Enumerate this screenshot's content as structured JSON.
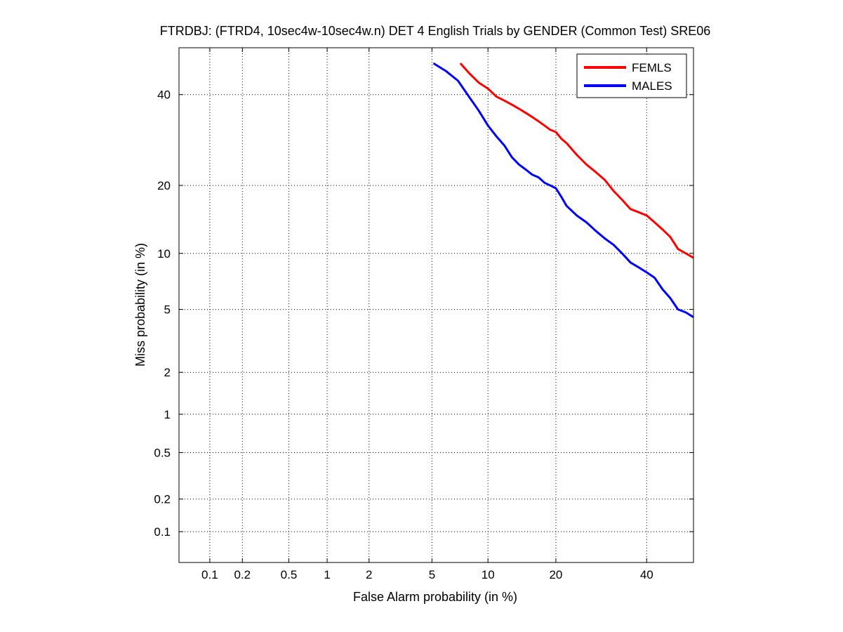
{
  "chart_data": {
    "type": "line",
    "title": "FTRDBJ: (FTRD4, 10sec4w-10sec4w.n) DET 4 English Trials by GENDER (Common Test) SRE06",
    "xlabel": "False Alarm probability (in %)",
    "ylabel": "Miss probability (in %)",
    "scale": "normal-deviate (probit) on both axes",
    "xlim": [
      0.05,
      52
    ],
    "ylim": [
      0.05,
      52
    ],
    "x_ticks": [
      "0.1",
      "0.2",
      "0.5",
      "1",
      "2",
      "5",
      "10",
      "20",
      "40"
    ],
    "y_ticks": [
      "0.1",
      "0.2",
      "0.5",
      "1",
      "2",
      "5",
      "10",
      "20",
      "40"
    ],
    "grid": true,
    "legend_position": "top-right",
    "series": [
      {
        "name": "FEMLS",
        "color": "#ff0000",
        "x": [
          7.2,
          8.0,
          9.0,
          10.0,
          11.0,
          12.0,
          13.0,
          14.0,
          15.0,
          16.0,
          17.0,
          18.0,
          19.0,
          20.0,
          21.0,
          22.0,
          24.0,
          26.0,
          28.0,
          30.0,
          32.0,
          34.0,
          36.0,
          38.0,
          40.0,
          42.0,
          44.0,
          46.0,
          48.0,
          50.0,
          52.0
        ],
        "y": [
          48.0,
          45.5,
          43.0,
          41.5,
          39.5,
          38.5,
          37.5,
          36.5,
          35.5,
          34.5,
          33.5,
          32.5,
          31.5,
          31.0,
          29.5,
          28.5,
          26.0,
          24.0,
          22.5,
          21.0,
          19.0,
          17.5,
          16.0,
          15.5,
          15.0,
          14.0,
          13.0,
          12.0,
          10.5,
          10.0,
          9.5
        ]
      },
      {
        "name": "MALES",
        "color": "#0000ff",
        "x": [
          5.1,
          6.0,
          7.0,
          8.0,
          9.0,
          10.0,
          11.0,
          12.0,
          13.0,
          14.0,
          15.0,
          16.0,
          17.0,
          18.0,
          19.0,
          20.0,
          21.0,
          22.0,
          24.0,
          26.0,
          28.0,
          30.0,
          32.0,
          34.0,
          36.0,
          38.0,
          40.0,
          42.0,
          44.0,
          46.0,
          48.0,
          50.0,
          52.0
        ],
        "y": [
          48.0,
          46.0,
          43.5,
          39.5,
          36.0,
          32.5,
          30.0,
          28.0,
          25.5,
          24.0,
          23.0,
          22.0,
          21.5,
          20.5,
          20.0,
          19.5,
          18.0,
          16.5,
          15.0,
          14.0,
          12.8,
          11.8,
          11.0,
          10.0,
          9.0,
          8.5,
          8.0,
          7.5,
          6.5,
          5.8,
          5.0,
          4.8,
          4.5
        ]
      }
    ]
  }
}
